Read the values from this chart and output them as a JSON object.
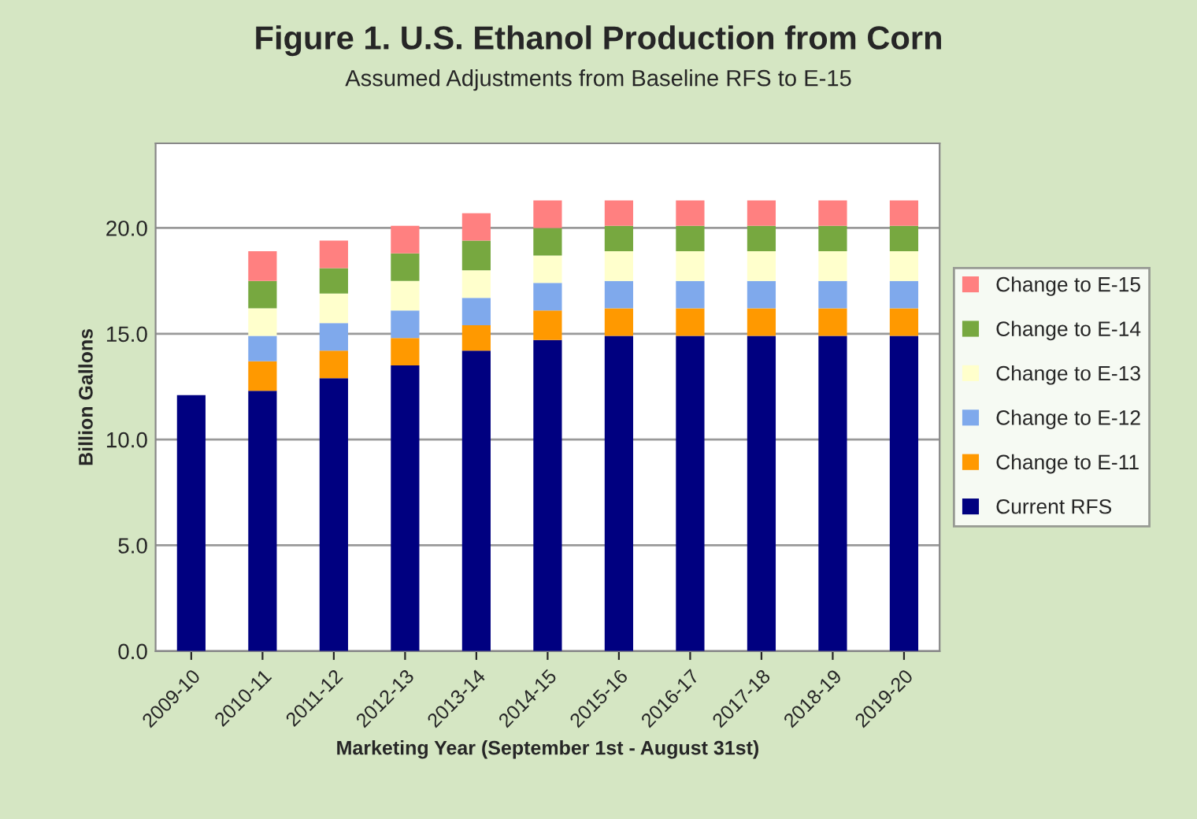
{
  "chart_data": {
    "type": "bar",
    "stacked": true,
    "title": "Figure 1. U.S. Ethanol Production from Corn",
    "subtitle": "Assumed Adjustments from Baseline RFS to E-15",
    "xlabel": "Marketing Year (September 1st - August 31st)",
    "ylabel": "Billion Gallons",
    "categories": [
      "2009-10",
      "2010-11",
      "2011-12",
      "2012-13",
      "2013-14",
      "2014-15",
      "2015-16",
      "2016-17",
      "2017-18",
      "2018-19",
      "2019-20"
    ],
    "series": [
      {
        "name": "Current RFS",
        "color": "#000080",
        "values": [
          12.1,
          12.3,
          12.9,
          13.5,
          14.2,
          14.7,
          14.9,
          14.9,
          14.9,
          14.9,
          14.9
        ]
      },
      {
        "name": "Change to E-11",
        "color": "#ff9900",
        "values": [
          null,
          1.4,
          1.3,
          1.3,
          1.2,
          1.4,
          1.3,
          1.3,
          1.3,
          1.3,
          1.3
        ]
      },
      {
        "name": "Change to E-12",
        "color": "#7fa9ec",
        "values": [
          null,
          1.2,
          1.3,
          1.3,
          1.3,
          1.3,
          1.3,
          1.3,
          1.3,
          1.3,
          1.3
        ]
      },
      {
        "name": "Change to E-13",
        "color": "#ffffcc",
        "values": [
          null,
          1.3,
          1.4,
          1.4,
          1.3,
          1.3,
          1.4,
          1.4,
          1.4,
          1.4,
          1.4
        ]
      },
      {
        "name": "Change to E-14",
        "color": "#77a840",
        "values": [
          null,
          1.3,
          1.2,
          1.3,
          1.4,
          1.3,
          1.2,
          1.2,
          1.2,
          1.2,
          1.2
        ]
      },
      {
        "name": "Change to E-15",
        "color": "#ff8080",
        "values": [
          null,
          1.4,
          1.3,
          1.3,
          1.3,
          1.3,
          1.2,
          1.2,
          1.2,
          1.2,
          1.2
        ]
      }
    ],
    "ylim": [
      0,
      24
    ],
    "yticks": [
      {
        "value": 0,
        "label": "0.0"
      },
      {
        "value": 5,
        "label": "5.0"
      },
      {
        "value": 10,
        "label": "10.0"
      },
      {
        "value": 15,
        "label": "15.0"
      },
      {
        "value": 20,
        "label": "20.0"
      }
    ],
    "grid": "y",
    "legend": "right"
  }
}
